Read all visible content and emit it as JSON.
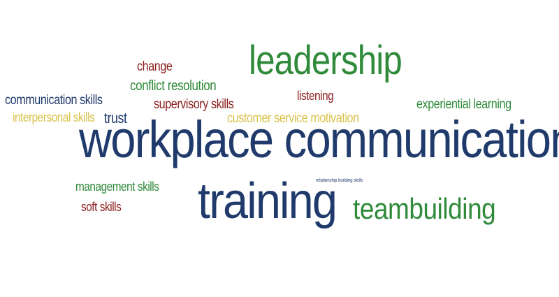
{
  "colors": {
    "navy": "#1f3a6b",
    "green": "#2f8a3a",
    "maroon": "#8a1c1c",
    "gold": "#d8c24a"
  },
  "words": {
    "workplace_communication": "workplace communication",
    "training": "training",
    "teambuilding": "teambuilding",
    "leadership": "leadership",
    "change": "change",
    "conflict_resolution": "conflict resolution",
    "communication_skills": "communication skills",
    "interpersonal_skills": "interpersonal skills",
    "trust": "trust",
    "supervisory_skills": "supervisory skills",
    "listening": "listening",
    "customer_service_motivation": "customer service motivation",
    "experiential_learning": "experiential learning",
    "management_skills": "management skills",
    "soft_skills": "soft skills",
    "relationship_building_skills": "relationship building skills"
  }
}
